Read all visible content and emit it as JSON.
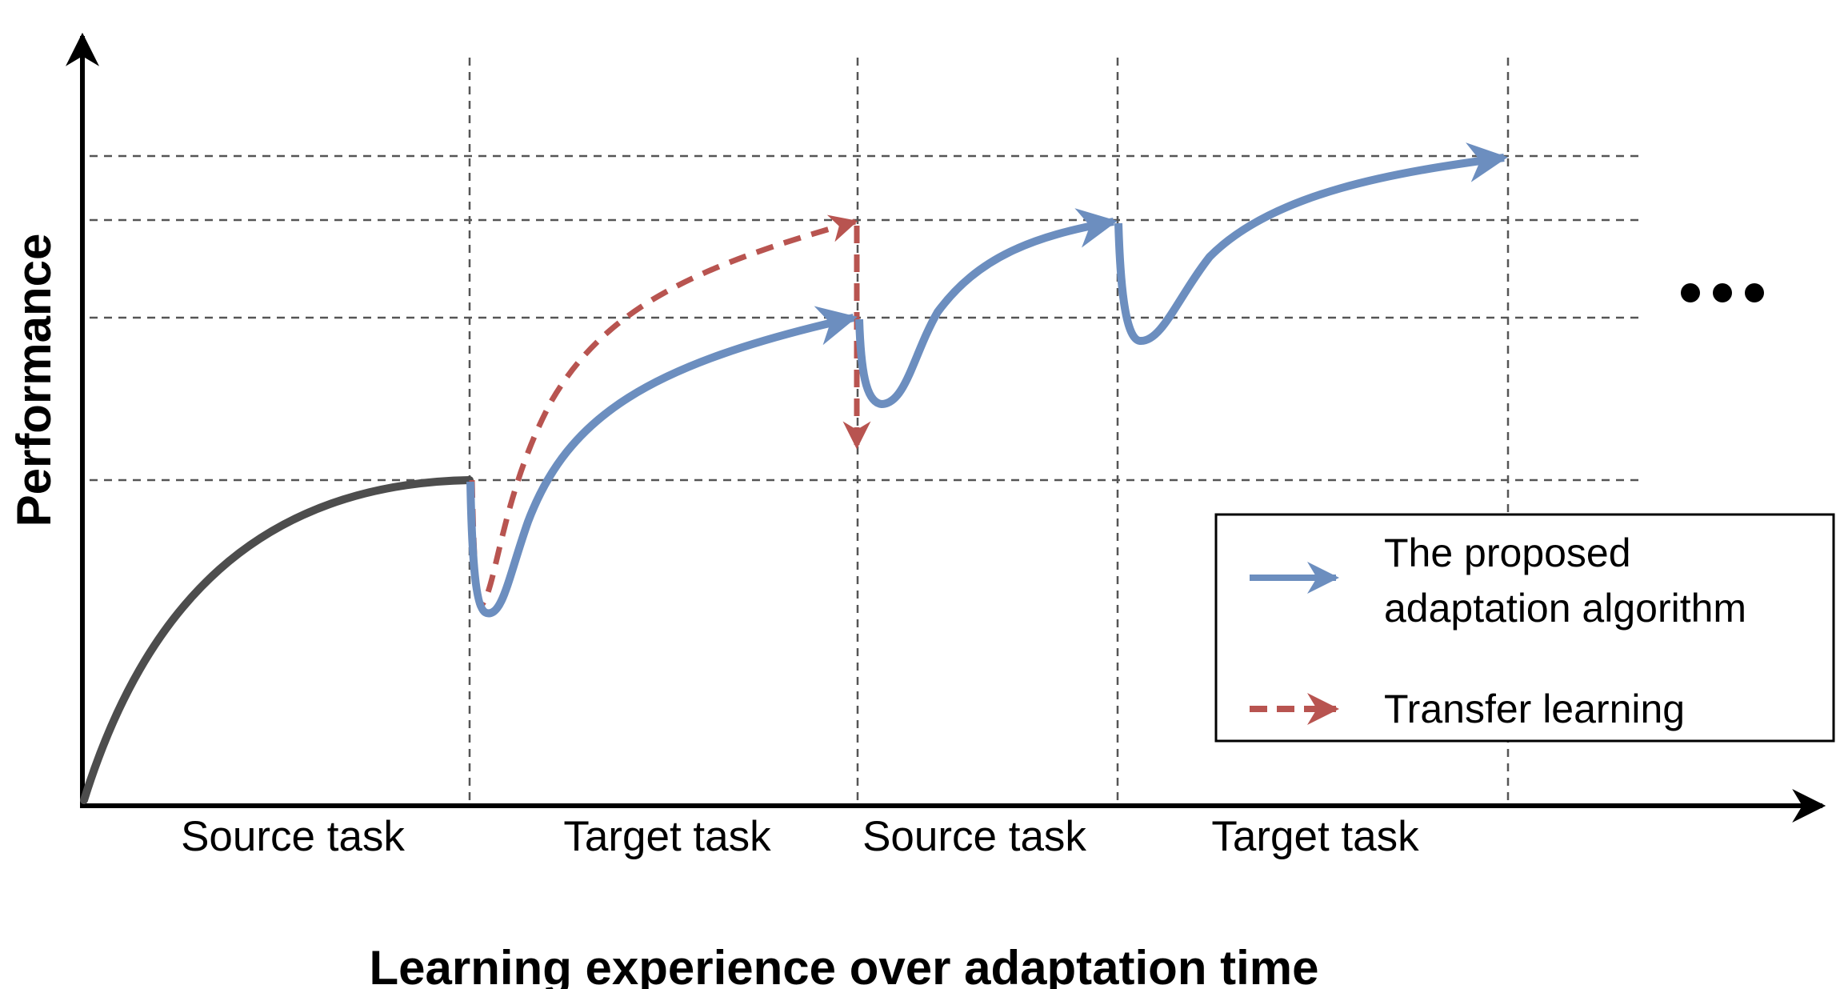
{
  "axes": {
    "y_label": "Performance",
    "x_label": "Learning experience over adaptation time"
  },
  "segments": [
    {
      "label": "Source task"
    },
    {
      "label": "Target task"
    },
    {
      "label": "Source task"
    },
    {
      "label": "Target task"
    }
  ],
  "ellipsis": "•••",
  "legend": {
    "proposed": {
      "line1": "The proposed",
      "line2": "adaptation algorithm"
    },
    "transfer": "Transfer learning"
  },
  "colors": {
    "proposed": "#6c8ebf",
    "transfer": "#b85450",
    "initial": "#4d4d4d",
    "axis": "#000000",
    "grid": "#555555"
  }
}
